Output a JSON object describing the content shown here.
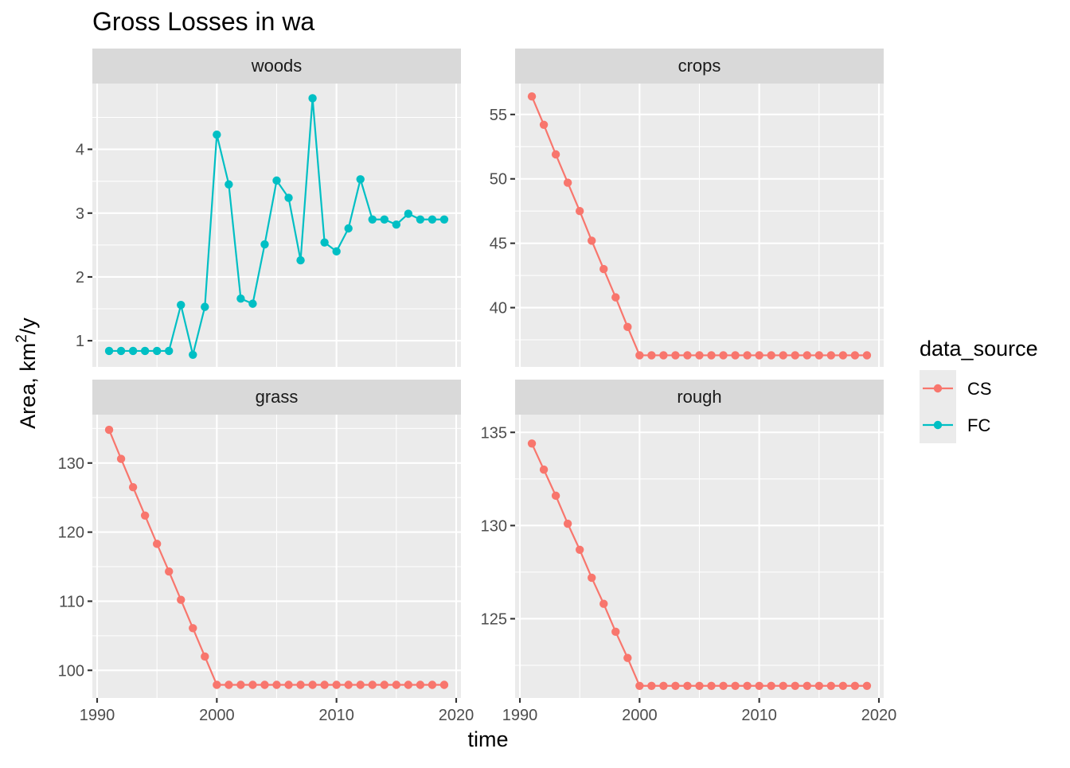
{
  "title": "Gross Losses in wa",
  "chart_data": {
    "type": "line",
    "title": "Gross Losses in wa",
    "xlabel": "time",
    "ylabel_base": "Area,  km",
    "ylabel_sup": "2",
    "ylabel_tail": "/y",
    "grid": true,
    "legend": {
      "title": "data_source",
      "position": "right",
      "items": [
        {
          "name": "CS",
          "color": "#F8766D"
        },
        {
          "name": "FC",
          "color": "#00BFC4"
        }
      ]
    },
    "x_ticks": [
      "1990",
      "2000",
      "2010",
      "2020"
    ],
    "x_range": [
      1989.6,
      2020.4
    ],
    "panels": [
      {
        "label": "woods",
        "color": "#00BFC4",
        "series": "FC",
        "y_range": [
          0.59,
          5.03
        ],
        "y_ticks": [
          1,
          2,
          3,
          4
        ],
        "x": [
          1991,
          1992,
          1993,
          1994,
          1995,
          1996,
          1997,
          1998,
          1999,
          2000,
          2001,
          2002,
          2003,
          2004,
          2005,
          2006,
          2007,
          2008,
          2009,
          2010,
          2011,
          2012,
          2013,
          2014,
          2015,
          2016,
          2017,
          2018,
          2019
        ],
        "y": [
          0.84,
          0.84,
          0.84,
          0.84,
          0.84,
          0.84,
          1.56,
          0.78,
          1.53,
          4.23,
          3.45,
          1.66,
          1.58,
          2.51,
          3.51,
          3.24,
          2.26,
          4.8,
          2.54,
          2.4,
          2.76,
          3.53,
          2.9,
          2.9,
          2.82,
          2.99,
          2.9,
          2.9,
          2.9
        ]
      },
      {
        "label": "crops",
        "color": "#F8766D",
        "series": "CS",
        "y_range": [
          35.4,
          57.4
        ],
        "y_ticks": [
          40,
          45,
          50,
          55
        ],
        "x": [
          1991,
          1992,
          1993,
          1994,
          1995,
          1996,
          1997,
          1998,
          1999,
          2000,
          2001,
          2002,
          2003,
          2004,
          2005,
          2006,
          2007,
          2008,
          2009,
          2010,
          2011,
          2012,
          2013,
          2014,
          2015,
          2016,
          2017,
          2018,
          2019
        ],
        "y": [
          56.4,
          54.2,
          51.9,
          49.7,
          47.5,
          45.2,
          43.0,
          40.8,
          38.5,
          36.3,
          36.3,
          36.3,
          36.3,
          36.3,
          36.3,
          36.3,
          36.3,
          36.3,
          36.3,
          36.3,
          36.3,
          36.3,
          36.3,
          36.3,
          36.3,
          36.3,
          36.3,
          36.3,
          36.3
        ]
      },
      {
        "label": "grass",
        "color": "#F8766D",
        "series": "CS",
        "y_range": [
          96.0,
          137.0
        ],
        "y_ticks": [
          100,
          110,
          120,
          130
        ],
        "x": [
          1991,
          1992,
          1993,
          1994,
          1995,
          1996,
          1997,
          1998,
          1999,
          2000,
          2001,
          2002,
          2003,
          2004,
          2005,
          2006,
          2007,
          2008,
          2009,
          2010,
          2011,
          2012,
          2013,
          2014,
          2015,
          2016,
          2017,
          2018,
          2019
        ],
        "y": [
          134.8,
          130.6,
          126.5,
          122.4,
          118.3,
          114.3,
          110.2,
          106.1,
          102.0,
          97.9,
          97.9,
          97.9,
          97.9,
          97.9,
          97.9,
          97.9,
          97.9,
          97.9,
          97.9,
          97.9,
          97.9,
          97.9,
          97.9,
          97.9,
          97.9,
          97.9,
          97.9,
          97.9,
          97.9
        ]
      },
      {
        "label": "rough",
        "color": "#F8766D",
        "series": "CS",
        "y_range": [
          120.75,
          135.95
        ],
        "y_ticks": [
          125,
          130,
          135
        ],
        "x": [
          1991,
          1992,
          1993,
          1994,
          1995,
          1996,
          1997,
          1998,
          1999,
          2000,
          2001,
          2002,
          2003,
          2004,
          2005,
          2006,
          2007,
          2008,
          2009,
          2010,
          2011,
          2012,
          2013,
          2014,
          2015,
          2016,
          2017,
          2018,
          2019
        ],
        "y": [
          134.4,
          133.0,
          131.6,
          130.1,
          128.7,
          127.2,
          125.8,
          124.3,
          122.9,
          121.4,
          121.4,
          121.4,
          121.4,
          121.4,
          121.4,
          121.4,
          121.4,
          121.4,
          121.4,
          121.4,
          121.4,
          121.4,
          121.4,
          121.4,
          121.4,
          121.4,
          121.4,
          121.4,
          121.4
        ]
      }
    ]
  }
}
